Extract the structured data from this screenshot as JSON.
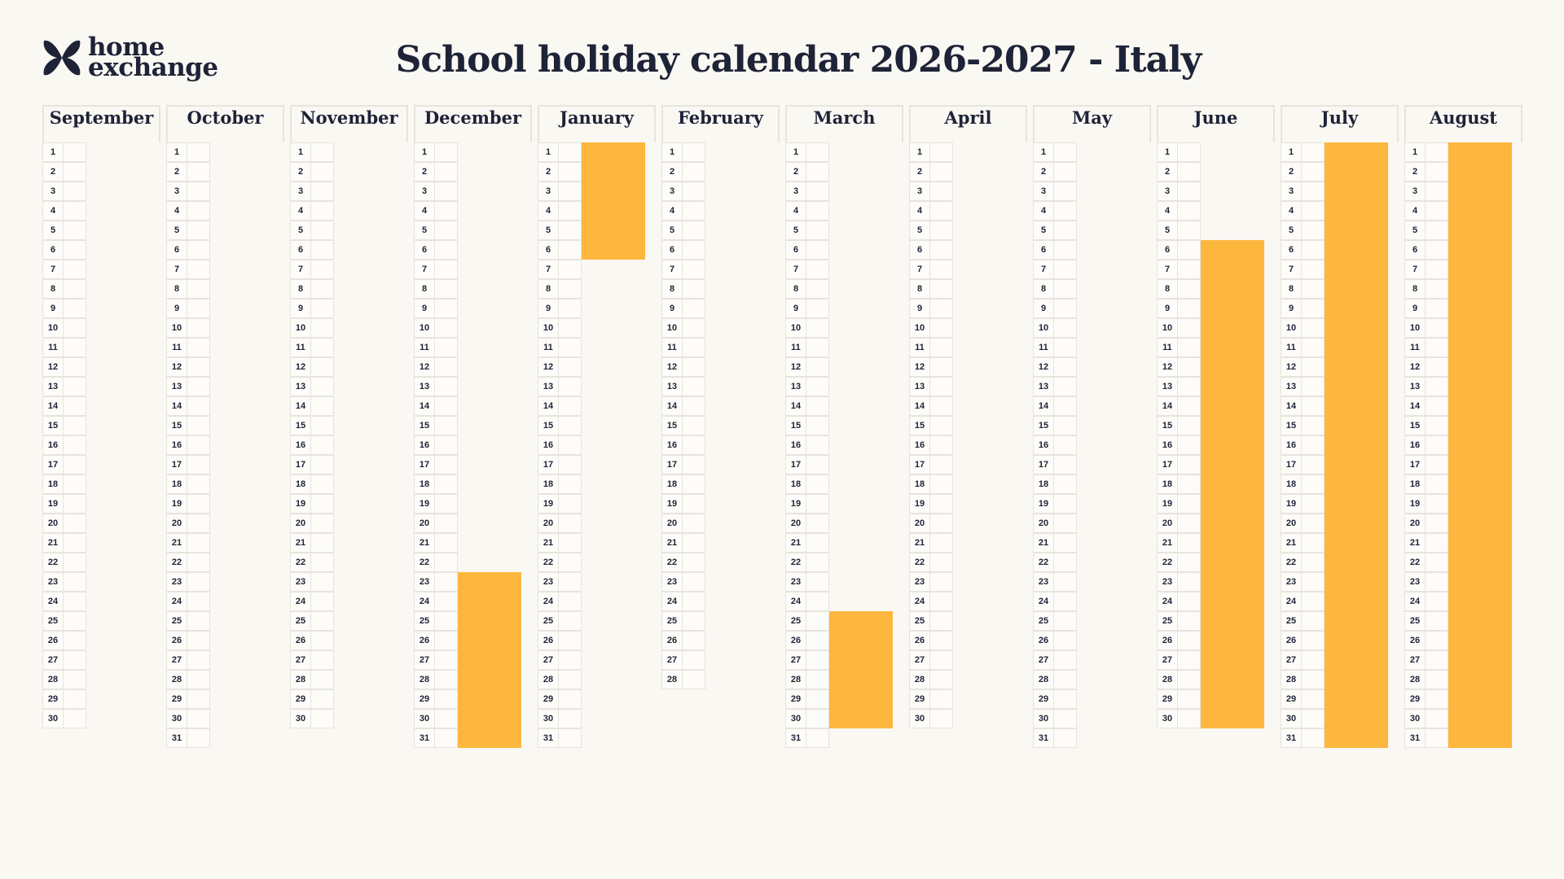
{
  "header": {
    "logo_line1": "home",
    "logo_line2": "exchange",
    "title": "School holiday calendar 2026-2027 - Italy"
  },
  "colors": {
    "background": "#faf8f3",
    "text": "#1f2337",
    "holiday": "#fdb73f",
    "grid": "#e7e4dd"
  },
  "months": [
    {
      "name": "September",
      "days": 30,
      "holidays": []
    },
    {
      "name": "October",
      "days": 31,
      "holidays": []
    },
    {
      "name": "November",
      "days": 30,
      "holidays": []
    },
    {
      "name": "December",
      "days": 31,
      "holidays": [
        {
          "start": 23,
          "end": 31
        }
      ]
    },
    {
      "name": "January",
      "days": 31,
      "holidays": [
        {
          "start": 1,
          "end": 6
        }
      ]
    },
    {
      "name": "February",
      "days": 28,
      "holidays": []
    },
    {
      "name": "March",
      "days": 31,
      "holidays": [
        {
          "start": 25,
          "end": 30
        }
      ]
    },
    {
      "name": "April",
      "days": 30,
      "holidays": []
    },
    {
      "name": "May",
      "days": 31,
      "holidays": []
    },
    {
      "name": "June",
      "days": 30,
      "holidays": [
        {
          "start": 6,
          "end": 30
        }
      ]
    },
    {
      "name": "July",
      "days": 31,
      "holidays": [
        {
          "start": 1,
          "end": 31
        }
      ]
    },
    {
      "name": "August",
      "days": 31,
      "holidays": [
        {
          "start": 1,
          "end": 31
        }
      ]
    }
  ]
}
